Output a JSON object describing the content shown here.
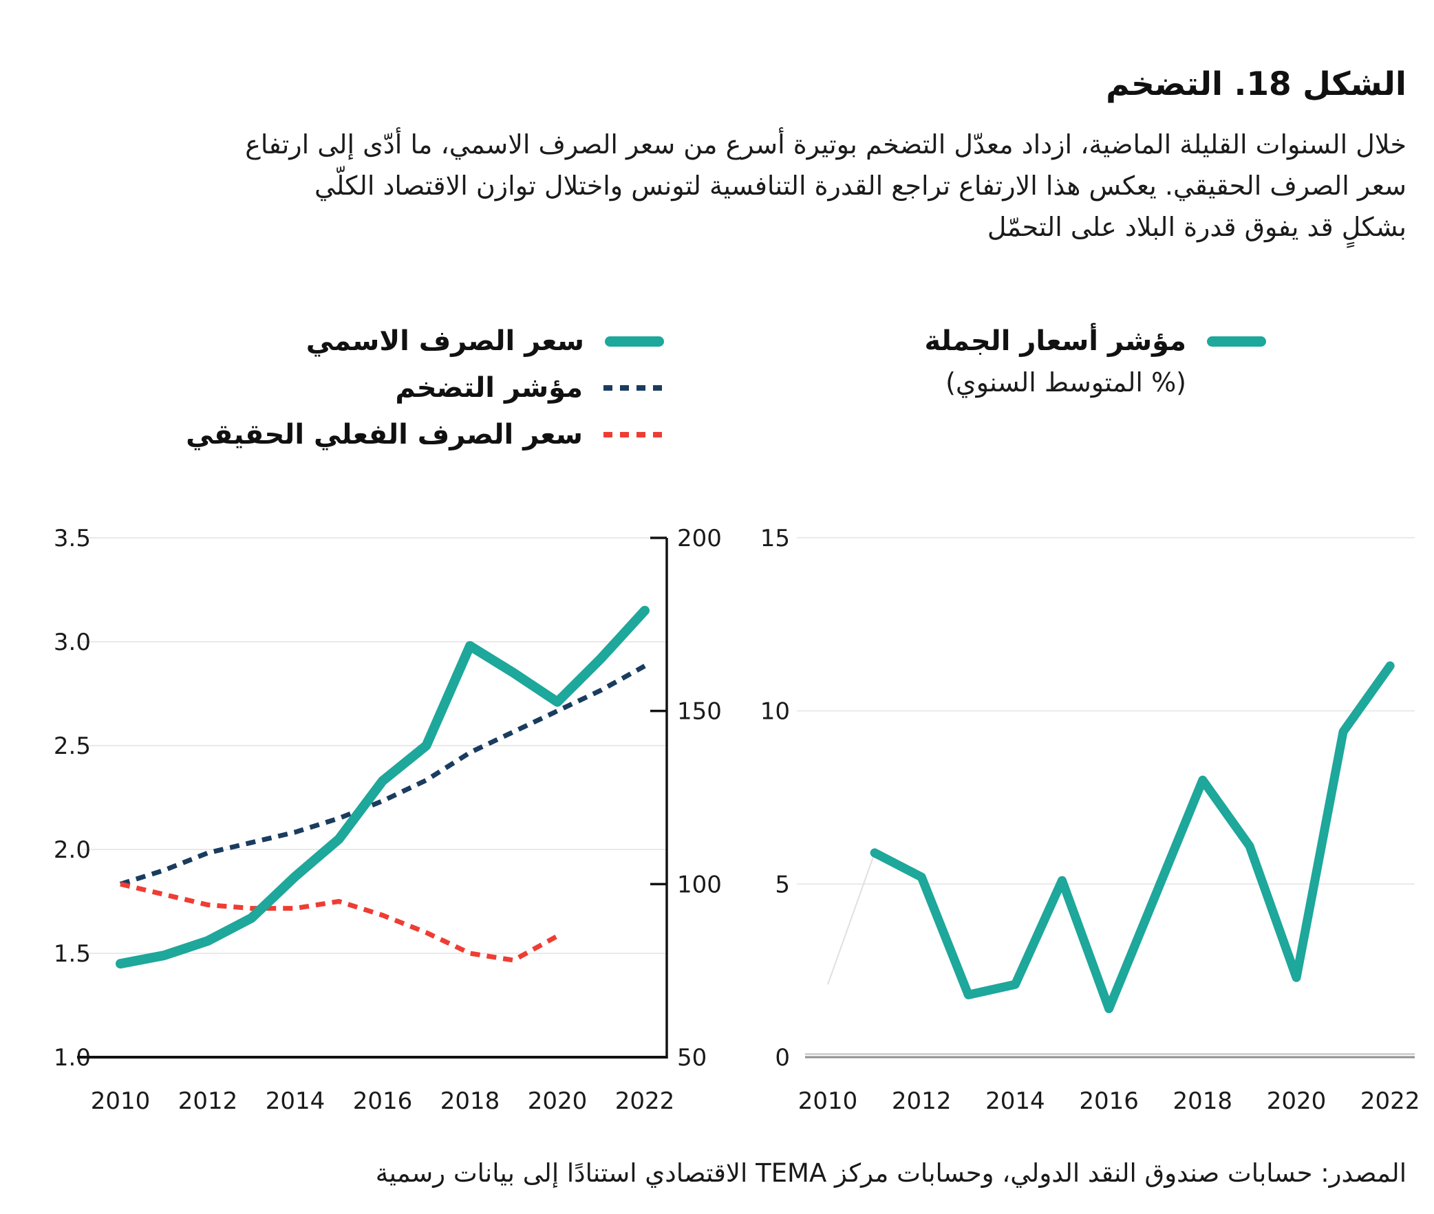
{
  "page": {
    "title": "الشكل 18. التضخم",
    "description_lines": [
      "خلال السنوات القليلة الماضية، ازداد معدّل التضخم بوتيرة أسرع من سعر الصرف الاسمي، ما أدّى إلى ارتفاع",
      "سعر الصرف الحقيقي. يعكس هذا الارتفاع تراجع القدرة التنافسية لتونس واختلال توازن الاقتصاد الكلّي",
      "بشكلٍ قد يفوق قدرة البلاد على التحمّل"
    ],
    "source": "المصدر: حسابات صندوق النقد الدولي، وحسابات مركز TEMA الاقتصادي استنادًا إلى بيانات رسمية"
  },
  "colors": {
    "teal": "#1EA79B",
    "navy": "#1A3C5F",
    "red": "#EE3D33",
    "grid": "#E9E9E9",
    "axis": "#121212",
    "zero_line_light": "#C9C9C9",
    "zero_line_dark": "#8F8F8F",
    "leader": "#E0E0E0",
    "tick_text": "#1A1A1A"
  },
  "legend_left": {
    "items": [
      {
        "label": "سعر الصرف الاسمي",
        "style": "solid",
        "color": "teal"
      },
      {
        "label": "مؤشر التضخم",
        "style": "dashed",
        "color": "navy"
      },
      {
        "label": "سعر الصرف الفعلي الحقيقي",
        "style": "dashed",
        "color": "red"
      }
    ]
  },
  "legend_right": {
    "label": "مؤشر أسعار الجملة",
    "sublabel": "(% المتوسط السنوي)",
    "style": "solid",
    "color": "teal"
  },
  "chart_data": [
    {
      "id": "exchange-rate-and-inflation",
      "type": "line",
      "x": [
        2010,
        2011,
        2012,
        2013,
        2014,
        2015,
        2016,
        2017,
        2018,
        2019,
        2020,
        2021,
        2022
      ],
      "x_tick_labels": [
        "2010",
        "2012",
        "2014",
        "2016",
        "2018",
        "2020",
        "2022"
      ],
      "left_axis": {
        "range": [
          1.0,
          3.5
        ],
        "tick_labels": [
          "3.5",
          "3.0",
          "2.5",
          "2.0",
          "1.5",
          "1.0"
        ]
      },
      "right_axis": {
        "range": [
          50,
          200
        ],
        "tick_labels": [
          "200",
          "150",
          "100",
          "50"
        ]
      },
      "grid": true,
      "series": [
        {
          "name": "سعر الصرف الاسمي",
          "color": "teal",
          "style": "solid",
          "axis": "left",
          "values": [
            1.45,
            1.49,
            1.56,
            1.67,
            1.87,
            2.05,
            2.33,
            2.5,
            2.98,
            2.85,
            2.71,
            2.92,
            3.15
          ]
        },
        {
          "name": "مؤشر التضخم",
          "color": "navy",
          "style": "dashed",
          "axis": "right",
          "values": [
            100,
            104,
            109,
            112,
            115,
            119,
            124,
            130,
            138,
            144,
            150,
            156,
            163
          ]
        },
        {
          "name": "سعر الصرف الفعلي الحقيقي",
          "color": "red",
          "style": "dashed",
          "axis": "right",
          "x": [
            2010,
            2011,
            2012,
            2013,
            2014,
            2015,
            2016,
            2017,
            2018,
            2019,
            2020
          ],
          "values": [
            100,
            97,
            94,
            93,
            93,
            95,
            91,
            86,
            80,
            78,
            85
          ]
        }
      ]
    },
    {
      "id": "wholesale-price-index",
      "type": "line",
      "x": [
        2011,
        2012,
        2013,
        2014,
        2015,
        2016,
        2017,
        2018,
        2019,
        2020,
        2021,
        2022
      ],
      "x_tick_labels": [
        "2010",
        "2012",
        "2014",
        "2016",
        "2018",
        "2020",
        "2022"
      ],
      "y_axis": {
        "range": [
          0,
          15
        ],
        "tick_labels": [
          "15",
          "10",
          "5",
          "0"
        ]
      },
      "grid": true,
      "series": [
        {
          "name": "مؤشر أسعار الجملة",
          "color": "teal",
          "style": "solid",
          "values": [
            5.9,
            5.2,
            1.8,
            2.1,
            5.1,
            1.4,
            4.7,
            8.0,
            6.1,
            2.3,
            9.4,
            11.3
          ]
        }
      ]
    }
  ]
}
